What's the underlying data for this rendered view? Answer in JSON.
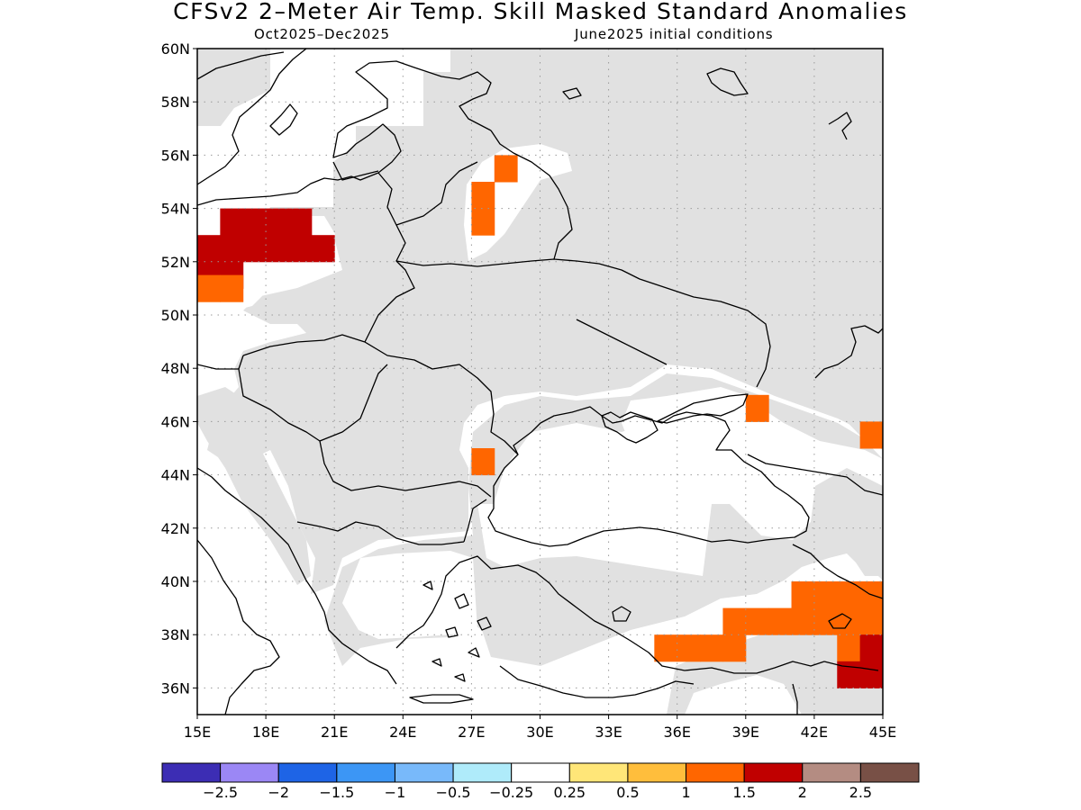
{
  "title": "CFSv2 2–Meter Air Temp. Skill Masked Standard Anomalies",
  "subtitle_left": "Oct2025–Dec2025",
  "subtitle_right": "June2025 initial conditions",
  "map": {
    "lat_labels": [
      "60N",
      "58N",
      "56N",
      "54N",
      "52N",
      "50N",
      "48N",
      "46N",
      "44N",
      "42N",
      "40N",
      "38N",
      "36N"
    ],
    "lon_labels": [
      "15E",
      "18E",
      "21E",
      "24E",
      "27E",
      "30E",
      "33E",
      "36E",
      "39E",
      "42E",
      "45E"
    ],
    "extent": {
      "lon_min": 15,
      "lon_max": 45,
      "lat_min": 35,
      "lat_max": 60
    },
    "grid": "dotted",
    "colors": {
      "masked": "#e1e1e1",
      "coast": "#000000"
    },
    "anomaly_cells": [
      {
        "lon": 16,
        "lat": 53.5,
        "color": "#c00000"
      },
      {
        "lon": 17,
        "lat": 53.5,
        "color": "#c00000"
      },
      {
        "lon": 18,
        "lat": 53.5,
        "color": "#c00000"
      },
      {
        "lon": 19,
        "lat": 53.5,
        "color": "#c00000"
      },
      {
        "lon": 15,
        "lat": 52.5,
        "color": "#c00000"
      },
      {
        "lon": 16,
        "lat": 52.5,
        "color": "#c00000"
      },
      {
        "lon": 17,
        "lat": 52.5,
        "color": "#c00000"
      },
      {
        "lon": 18,
        "lat": 52.5,
        "color": "#c00000"
      },
      {
        "lon": 19,
        "lat": 52.5,
        "color": "#c00000"
      },
      {
        "lon": 20,
        "lat": 52.5,
        "color": "#c00000"
      },
      {
        "lon": 15,
        "lat": 51.5,
        "color": "#c00000"
      },
      {
        "lon": 16,
        "lat": 51.5,
        "color": "#c00000"
      },
      {
        "lon": 15,
        "lat": 51,
        "color": "#ff6600"
      },
      {
        "lon": 16,
        "lat": 51,
        "color": "#ff6600"
      },
      {
        "lon": 28,
        "lat": 55.5,
        "color": "#ff6600"
      },
      {
        "lon": 27,
        "lat": 54.5,
        "color": "#ff6600"
      },
      {
        "lon": 27,
        "lat": 53.5,
        "color": "#ff6600"
      },
      {
        "lon": 39,
        "lat": 46.5,
        "color": "#ff6600"
      },
      {
        "lon": 44,
        "lat": 45.5,
        "color": "#ff6600"
      },
      {
        "lon": 27,
        "lat": 44.5,
        "color": "#ff6600"
      },
      {
        "lon": 41,
        "lat": 39.5,
        "color": "#ff6600"
      },
      {
        "lon": 42,
        "lat": 39.5,
        "color": "#ff6600"
      },
      {
        "lon": 43,
        "lat": 39.5,
        "color": "#ff6600"
      },
      {
        "lon": 44,
        "lat": 39.5,
        "color": "#ff6600"
      },
      {
        "lon": 38,
        "lat": 38.5,
        "color": "#ff6600"
      },
      {
        "lon": 39,
        "lat": 38.5,
        "color": "#ff6600"
      },
      {
        "lon": 40,
        "lat": 38.5,
        "color": "#ff6600"
      },
      {
        "lon": 41,
        "lat": 38.5,
        "color": "#ff6600"
      },
      {
        "lon": 42,
        "lat": 38.5,
        "color": "#ff6600"
      },
      {
        "lon": 43,
        "lat": 38.5,
        "color": "#ff6600"
      },
      {
        "lon": 44,
        "lat": 38.5,
        "color": "#ff6600"
      },
      {
        "lon": 35,
        "lat": 37.5,
        "color": "#ff6600"
      },
      {
        "lon": 36,
        "lat": 37.5,
        "color": "#ff6600"
      },
      {
        "lon": 37,
        "lat": 37.5,
        "color": "#ff6600"
      },
      {
        "lon": 38,
        "lat": 37.5,
        "color": "#ff6600"
      },
      {
        "lon": 43,
        "lat": 37.5,
        "color": "#ff6600"
      },
      {
        "lon": 44,
        "lat": 37.5,
        "color": "#c00000"
      },
      {
        "lon": 43,
        "lat": 36.5,
        "color": "#c00000"
      },
      {
        "lon": 44,
        "lat": 36.5,
        "color": "#c00000"
      }
    ]
  },
  "colorbar": {
    "colors": [
      "#3c2db4",
      "#9b87f5",
      "#1e64e6",
      "#3c96f5",
      "#78b9fa",
      "#afebfa",
      "#ffffff",
      "#ffe678",
      "#ffbe3c",
      "#ff6600",
      "#c00000",
      "#b48c82",
      "#785046"
    ],
    "labels": [
      "−2.5",
      "−2",
      "−1.5",
      "−1",
      "−0.5",
      "−0.25",
      "0.25",
      "0.5",
      "1",
      "1.5",
      "2",
      "2.5"
    ]
  }
}
